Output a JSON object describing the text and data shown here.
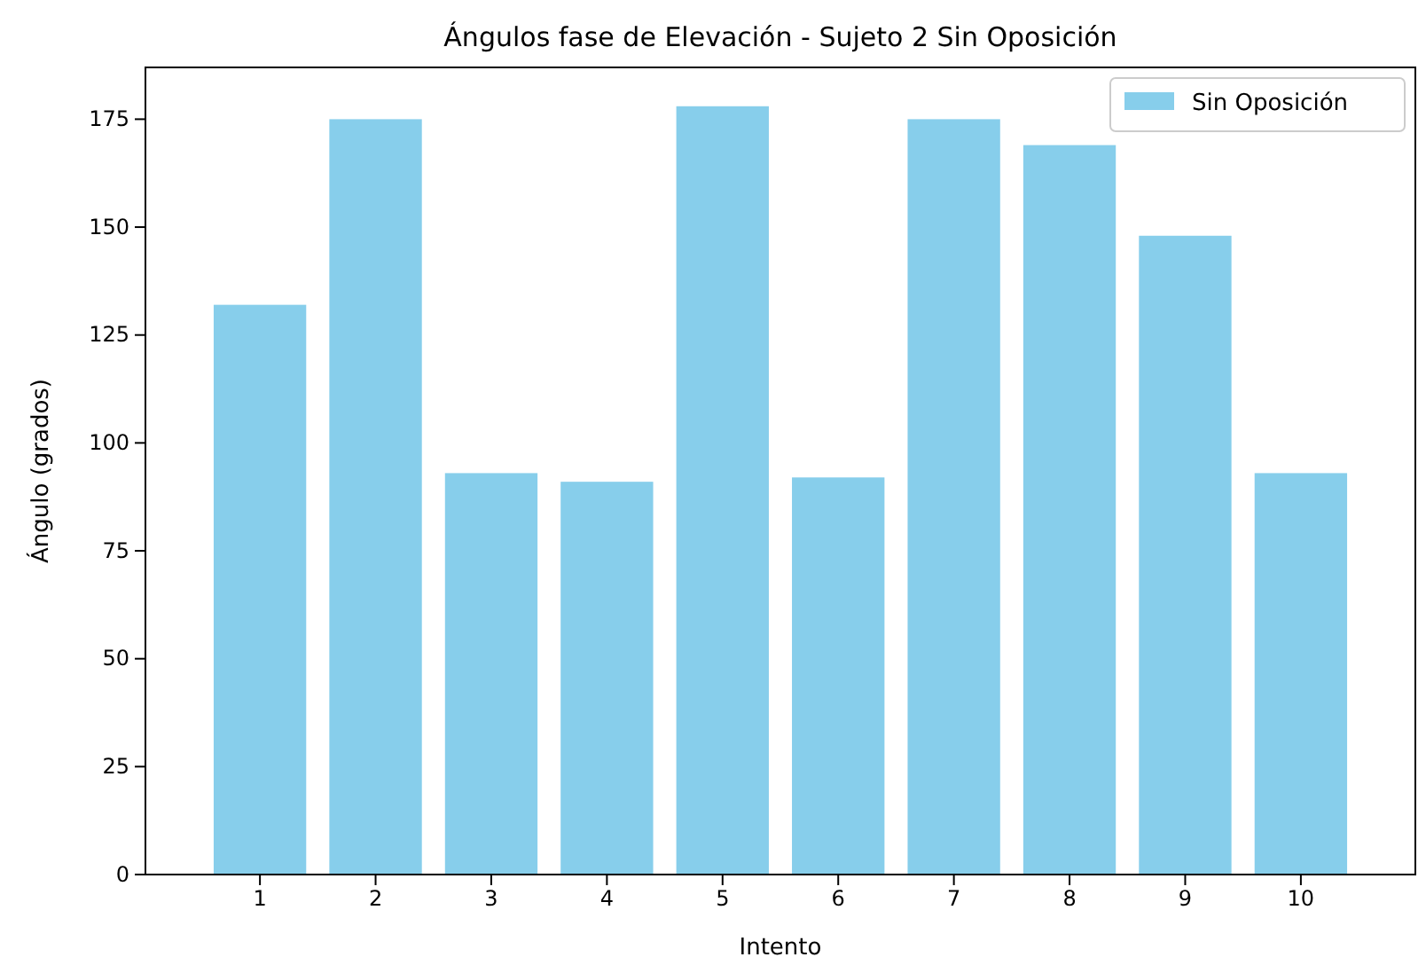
{
  "chart_data": {
    "type": "bar",
    "title": "Ángulos fase  de Elevación - Sujeto 2 Sin Oposición",
    "xlabel": "Intento",
    "ylabel": "Ángulo (grados)",
    "categories": [
      "1",
      "2",
      "3",
      "4",
      "5",
      "6",
      "7",
      "8",
      "9",
      "10"
    ],
    "series": [
      {
        "name": "Sin Oposición",
        "color": "#87ceeb",
        "values": [
          132,
          175,
          93,
          91,
          178,
          92,
          175,
          169,
          148,
          93
        ]
      }
    ],
    "ylim": [
      0,
      187
    ],
    "yticks": [
      0,
      25,
      50,
      75,
      100,
      125,
      150,
      175
    ],
    "grid": false,
    "legend": "top right"
  }
}
